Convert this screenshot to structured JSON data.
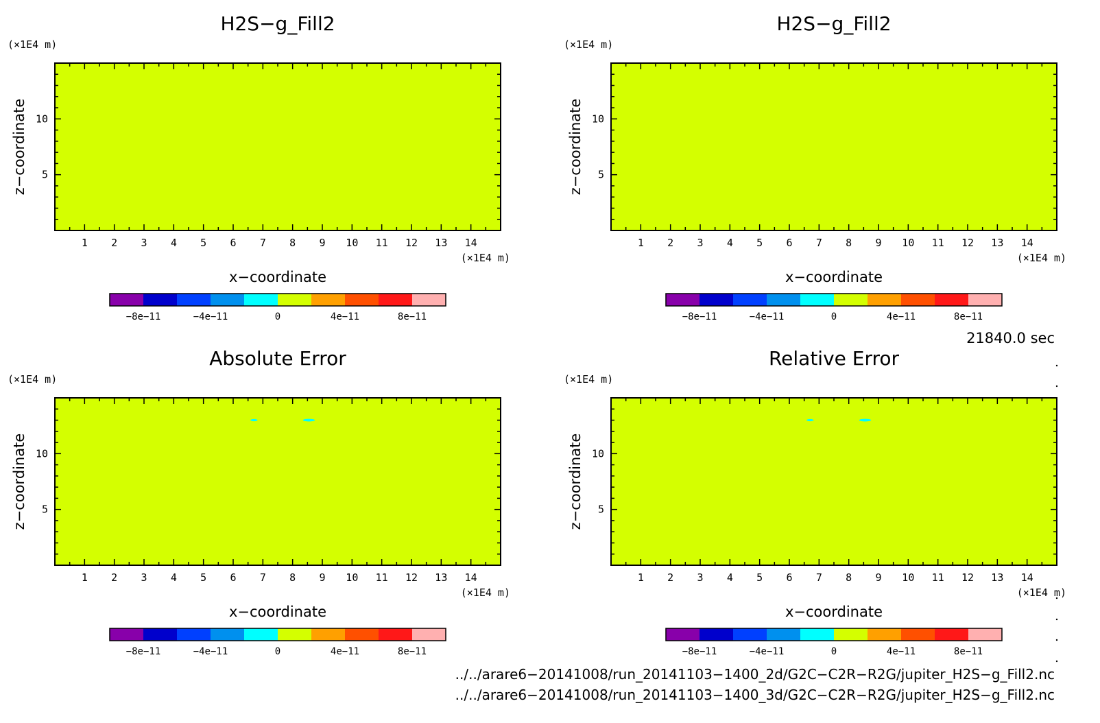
{
  "chart_data": [
    {
      "type": "heatmap",
      "title": "H2S−g_Fill2",
      "xlabel": "x−coordinate",
      "ylabel": "z−coordinate",
      "x_unit": "(×1E4 m)",
      "y_unit": "(×1E4 m)",
      "xlim": [
        0,
        15
      ],
      "ylim": [
        0,
        15
      ],
      "x_ticks": [
        1,
        2,
        3,
        4,
        5,
        6,
        7,
        8,
        9,
        10,
        11,
        12,
        13,
        14
      ],
      "y_ticks": [
        5,
        10
      ],
      "field": {
        "uniform_value": 0,
        "anomalies": []
      },
      "colorbar": {
        "range": [
          -1e-10,
          1e-10
        ],
        "tick_labels": [
          "−8e−11",
          "−4e−11",
          "0",
          "4e−11",
          "8e−11"
        ]
      }
    },
    {
      "type": "heatmap",
      "title": "H2S−g_Fill2",
      "xlabel": "x−coordinate",
      "ylabel": "z−coordinate",
      "x_unit": "(×1E4 m)",
      "y_unit": "(×1E4 m)",
      "xlim": [
        0,
        15
      ],
      "ylim": [
        0,
        15
      ],
      "x_ticks": [
        1,
        2,
        3,
        4,
        5,
        6,
        7,
        8,
        9,
        10,
        11,
        12,
        13,
        14
      ],
      "y_ticks": [
        5,
        10
      ],
      "field": {
        "uniform_value": 0,
        "anomalies": []
      },
      "colorbar": {
        "range": [
          -1e-10,
          1e-10
        ],
        "tick_labels": [
          "−8e−11",
          "−4e−11",
          "0",
          "4e−11",
          "8e−11"
        ]
      }
    },
    {
      "type": "heatmap",
      "title": "Absolute Error",
      "xlabel": "x−coordinate",
      "ylabel": "z−coordinate",
      "x_unit": "(×1E4 m)",
      "y_unit": "(×1E4 m)",
      "xlim": [
        0,
        15
      ],
      "ylim": [
        0,
        15
      ],
      "x_ticks": [
        1,
        2,
        3,
        4,
        5,
        6,
        7,
        8,
        9,
        10,
        11,
        12,
        13,
        14
      ],
      "y_ticks": [
        5,
        10
      ],
      "field": {
        "uniform_value": 0,
        "anomalies": [
          {
            "x": 6.7,
            "z": 13.0,
            "rx": 0.12,
            "rz": 0.1,
            "value": -1e-11
          },
          {
            "x": 8.55,
            "z": 13.0,
            "rx": 0.2,
            "rz": 0.12,
            "value": -1e-11
          }
        ]
      },
      "colorbar": {
        "range": [
          -1e-10,
          1e-10
        ],
        "tick_labels": [
          "−8e−11",
          "−4e−11",
          "0",
          "4e−11",
          "8e−11"
        ]
      }
    },
    {
      "type": "heatmap",
      "title": "Relative Error",
      "xlabel": "x−coordinate",
      "ylabel": "z−coordinate",
      "x_unit": "(×1E4 m)",
      "y_unit": "(×1E4 m)",
      "xlim": [
        0,
        15
      ],
      "ylim": [
        0,
        15
      ],
      "x_ticks": [
        1,
        2,
        3,
        4,
        5,
        6,
        7,
        8,
        9,
        10,
        11,
        12,
        13,
        14
      ],
      "y_ticks": [
        5,
        10
      ],
      "field": {
        "uniform_value": 0,
        "anomalies": [
          {
            "x": 6.7,
            "z": 13.0,
            "rx": 0.12,
            "rz": 0.1,
            "value": -1e-11
          },
          {
            "x": 8.55,
            "z": 13.0,
            "rx": 0.2,
            "rz": 0.12,
            "value": -1e-11
          }
        ]
      },
      "colorbar": {
        "range": [
          -1e-10,
          1e-10
        ],
        "tick_labels": [
          "−8e−11",
          "−4e−11",
          "0",
          "4e−11",
          "8e−11"
        ]
      }
    }
  ],
  "colors": {
    "palette": [
      "#8800aa",
      "#0000cc",
      "#0040ff",
      "#0090ee",
      "#00ffff",
      "#d4ff00",
      "#ffa000",
      "#ff5000",
      "#ff1818",
      "#ffb0b0"
    ],
    "field": "#d4ff00",
    "anomaly": "#00ffff",
    "axis": "#000000"
  },
  "time_label": "21840.0 sec",
  "files": [
    "../../arare6−20141008/run_20141103−1400_2d/G2C−C2R−R2G/jupiter_H2S−g_Fill2.nc",
    "../../arare6−20141008/run_20141103−1400_3d/G2C−C2R−R2G/jupiter_H2S−g_Fill2.nc"
  ]
}
